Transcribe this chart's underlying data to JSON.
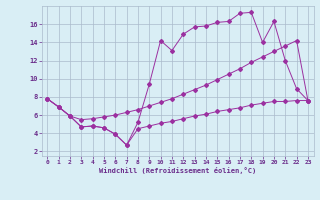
{
  "xlabel": "Windchill (Refroidissement éolien,°C)",
  "line1_x": [
    0,
    1,
    2,
    3,
    4,
    5,
    6,
    7,
    8,
    9,
    10,
    11,
    12,
    13,
    14,
    15,
    16,
    17,
    18,
    19,
    20,
    21,
    22,
    23
  ],
  "line1_y": [
    7.8,
    6.9,
    5.9,
    4.7,
    4.8,
    4.6,
    3.9,
    2.7,
    5.2,
    9.4,
    14.2,
    13.1,
    14.9,
    15.7,
    15.8,
    16.2,
    16.3,
    17.2,
    17.3,
    14.0,
    16.3,
    12.0,
    8.9,
    7.6
  ],
  "line2_x": [
    0,
    1,
    2,
    3,
    4,
    5,
    6,
    7,
    8,
    9,
    10,
    11,
    12,
    13,
    14,
    15,
    16,
    17,
    18,
    19,
    20,
    21,
    22,
    23
  ],
  "line2_y": [
    7.8,
    6.9,
    5.9,
    5.5,
    5.6,
    5.8,
    6.0,
    6.3,
    6.6,
    7.0,
    7.4,
    7.8,
    8.3,
    8.8,
    9.3,
    9.9,
    10.5,
    11.1,
    11.8,
    12.4,
    13.0,
    13.6,
    14.2,
    7.6
  ],
  "line3_x": [
    0,
    1,
    2,
    3,
    4,
    5,
    6,
    7,
    8,
    9,
    10,
    11,
    12,
    13,
    14,
    15,
    16,
    17,
    18,
    19,
    20,
    21,
    22,
    23
  ],
  "line3_y": [
    7.8,
    6.9,
    5.9,
    4.7,
    4.8,
    4.6,
    3.9,
    2.7,
    4.5,
    4.8,
    5.1,
    5.3,
    5.6,
    5.9,
    6.1,
    6.4,
    6.6,
    6.8,
    7.1,
    7.3,
    7.5,
    7.5,
    7.6,
    7.6
  ],
  "line_color": "#9b30a0",
  "bg_color": "#d9eef5",
  "grid_color": "#aabbcc",
  "ylim": [
    1.5,
    18.0
  ],
  "xlim": [
    -0.5,
    23.5
  ],
  "yticks": [
    2,
    4,
    6,
    8,
    10,
    12,
    14,
    16
  ],
  "xticks": [
    0,
    1,
    2,
    3,
    4,
    5,
    6,
    7,
    8,
    9,
    10,
    11,
    12,
    13,
    14,
    15,
    16,
    17,
    18,
    19,
    20,
    21,
    22,
    23
  ]
}
